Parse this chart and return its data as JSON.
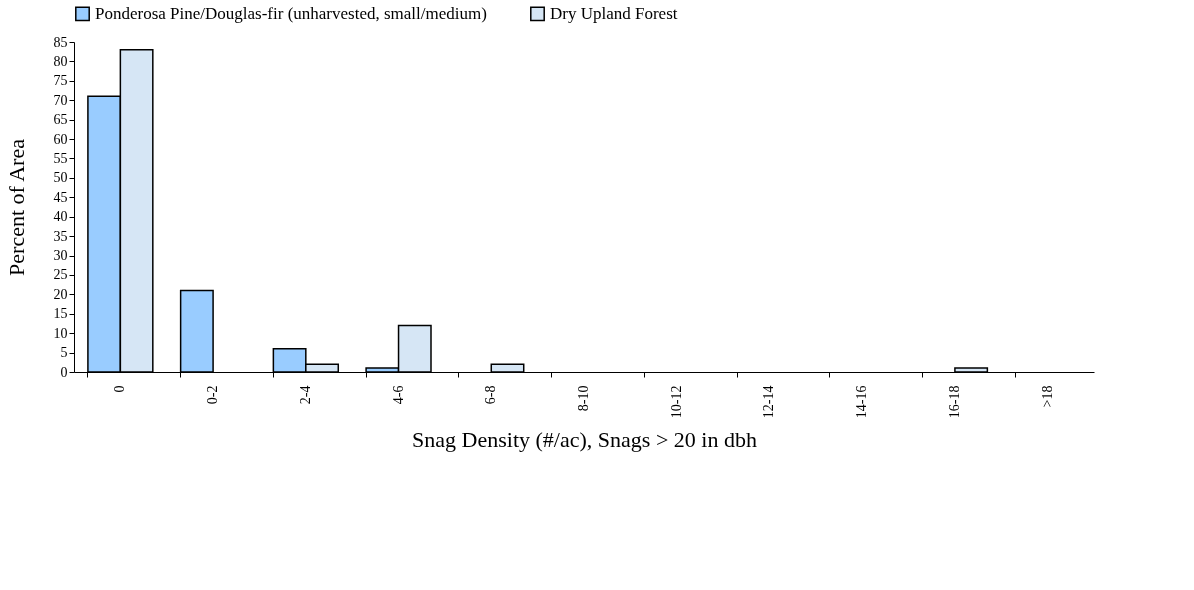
{
  "chart_data": {
    "type": "bar",
    "xlabel": "Snag Density (#/ac), Snags > 20 in dbh",
    "ylabel": "Percent of Area",
    "categories": [
      "0",
      "0-2",
      "2-4",
      "4-6",
      "6-8",
      "8-10",
      "10-12",
      "12-14",
      "14-16",
      "16-18",
      ">18"
    ],
    "series": [
      {
        "name": "Ponderosa Pine/Douglas-fir (unharvested, small/medium)",
        "color": "#99ccff",
        "values": [
          71,
          21,
          6,
          1,
          0,
          0,
          0,
          0,
          0,
          0,
          0
        ]
      },
      {
        "name": "Dry Upland Forest",
        "color": "#d6e6f5",
        "values": [
          83,
          0,
          2,
          12,
          2,
          0,
          0,
          0,
          0,
          1,
          0
        ]
      }
    ],
    "ylim": [
      0,
      85
    ],
    "yticks": [
      0,
      5,
      10,
      15,
      20,
      25,
      30,
      35,
      40,
      45,
      50,
      55,
      60,
      65,
      70,
      75,
      80,
      85
    ],
    "grid": false,
    "legend": "top"
  }
}
